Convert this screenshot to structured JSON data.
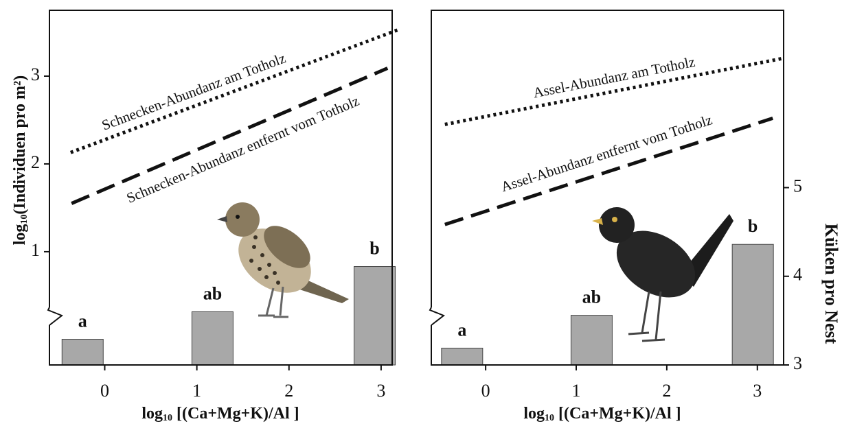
{
  "chart_data": [
    {
      "type": "bar_line",
      "xlabel": [
        "log",
        "10",
        " [(Ca+Mg+K)/Al ]"
      ],
      "ylabel": [
        "log",
        "10",
        "(Individuen pro m²)"
      ],
      "xlim": [
        -0.6,
        3.12
      ],
      "xticks": [
        0,
        1,
        2,
        3
      ],
      "ylim": [
        -0.29,
        3.75
      ],
      "yticks": [
        1,
        2,
        3
      ],
      "y2lim": [
        3,
        7
      ],
      "axis_break": true,
      "bars": {
        "x": [
          -0.24,
          1.17,
          2.93
        ],
        "values": [
          3.29,
          3.6,
          4.11
        ],
        "letters": [
          "a",
          "ab",
          "b"
        ],
        "color": "#a8a8a8",
        "axis": "y2"
      },
      "series": [
        {
          "name": "Schnecken-Abundanz am Totholz",
          "style": "dotted",
          "color": "#111111",
          "x": [
            -0.37,
            3.19
          ],
          "values": [
            2.13,
            3.53
          ]
        },
        {
          "name": "Schnecken-Abundanz entfernt vom Totholz",
          "style": "dashed",
          "color": "#111111",
          "x": [
            -0.36,
            3.07
          ],
          "values": [
            1.55,
            3.09
          ]
        }
      ]
    },
    {
      "type": "bar_line",
      "xlabel": [
        "log",
        "10",
        " [(Ca+Mg+K)/Al ]"
      ],
      "y2label": "Küken pro Nest",
      "xlim": [
        -0.6,
        3.29
      ],
      "xticks": [
        0,
        1,
        2,
        3
      ],
      "ylim": [
        -0.29,
        3.75
      ],
      "y2lim": [
        3,
        7
      ],
      "y2ticks": [
        3,
        4,
        5
      ],
      "axis_break": true,
      "bars": {
        "x": [
          -0.26,
          1.17,
          2.95
        ],
        "values": [
          3.19,
          3.56,
          4.36
        ],
        "letters": [
          "a",
          "ab",
          "b"
        ],
        "color": "#a8a8a8",
        "axis": "y2"
      },
      "series": [
        {
          "name": "Assel-Abundanz am Totholz",
          "style": "dotted",
          "color": "#111111",
          "x": [
            -0.45,
            3.27
          ],
          "values": [
            2.45,
            3.2
          ]
        },
        {
          "name": "Assel-Abundanz entfernt vom Totholz",
          "style": "dashed",
          "color": "#111111",
          "x": [
            -0.45,
            3.17
          ],
          "values": [
            1.31,
            2.52
          ]
        }
      ]
    }
  ]
}
